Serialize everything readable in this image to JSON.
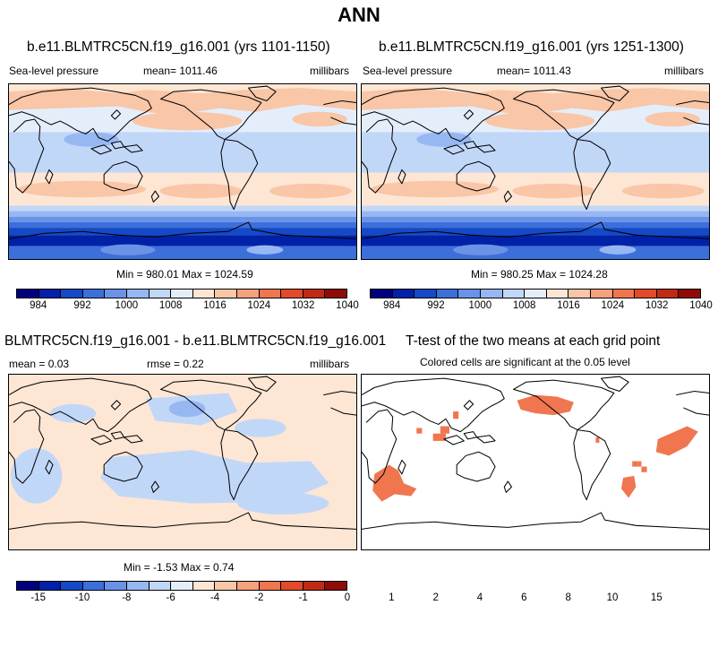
{
  "main_title": "ANN",
  "panel1": {
    "title": "b.e11.BLMTRC5CN.f19_g16.001 (yrs 1101-1150)",
    "variable": "Sea-level pressure",
    "mean": "mean= 1011.46",
    "units": "millibars",
    "minmax": "Min = 980.01 Max = 1024.59"
  },
  "panel2": {
    "title": "b.e11.BLMTRC5CN.f19_g16.001 (yrs 1251-1300)",
    "variable": "Sea-level pressure",
    "mean": "mean= 1011.43",
    "units": "millibars",
    "minmax": "Min = 980.25 Max = 1024.28"
  },
  "panel3": {
    "title": "BLMTRC5CN.f19_g16.001 - b.e11.BLMTRC5CN.f19_g16.001",
    "mean": "mean =   0.03",
    "rmse": "rmse =   0.22",
    "units": "millibars",
    "minmax": "Min =  -1.53 Max =   0.74"
  },
  "panel4": {
    "title": "T-test of the two means at each grid point",
    "subtitle": "Colored cells are significant at the 0.05 level"
  },
  "colorbar_abs": {
    "colors": [
      "#00007f",
      "#0021a8",
      "#1449c7",
      "#3d6fdb",
      "#6a93e8",
      "#97b7f2",
      "#c1d7f8",
      "#e4eefb",
      "#fde6d4",
      "#f9c6a7",
      "#f5a17d",
      "#f07650",
      "#e24a2a",
      "#c02a15",
      "#8f0b07"
    ],
    "labels": [
      "984",
      "992",
      "1000",
      "1008",
      "1016",
      "1024",
      "1032",
      "1040"
    ]
  },
  "colorbar_diff": {
    "colors": [
      "#00007f",
      "#0021a8",
      "#1449c7",
      "#3d6fdb",
      "#6a93e8",
      "#97b7f2",
      "#c1d7f8",
      "#e4eefb",
      "#fde6d4",
      "#f9c6a7",
      "#f5a17d",
      "#f07650",
      "#e24a2a",
      "#c02a15",
      "#8f0b07"
    ],
    "labels": [
      "-15",
      "-10",
      "-8",
      "-6",
      "-4",
      "-2",
      "-1",
      "0",
      "1",
      "2",
      "4",
      "6",
      "8",
      "10",
      "15"
    ]
  }
}
